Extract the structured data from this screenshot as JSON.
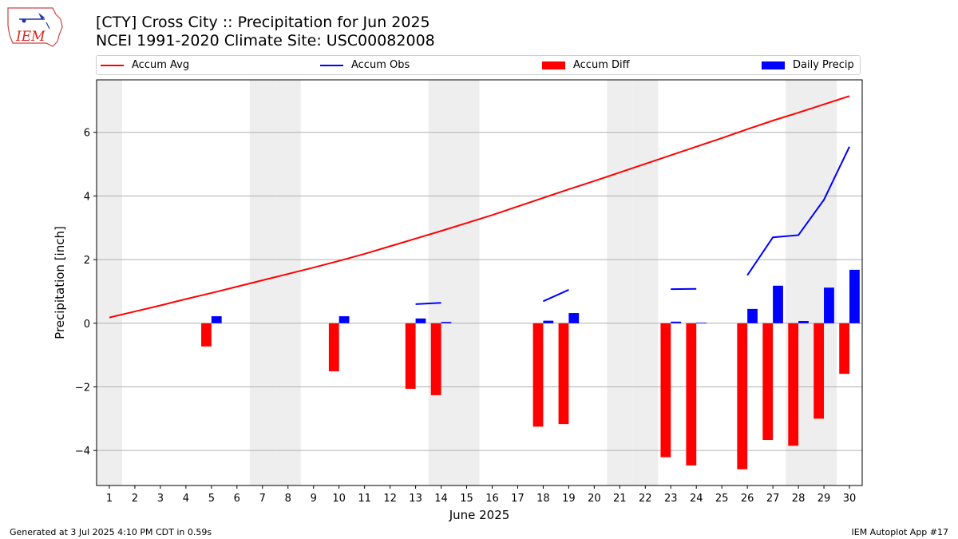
{
  "header": {
    "title_line1": "[CTY] Cross City :: Precipitation for Jun 2025",
    "title_line2": "NCEI 1991-2020 Climate Site: USC00082008",
    "logo_text": "IEM"
  },
  "legend": {
    "accum_avg": "Accum Avg",
    "accum_obs": "Accum Obs",
    "accum_diff": "Accum Diff",
    "daily_precip": "Daily Precip"
  },
  "footer": {
    "generated": "Generated at 3 Jul 2025 4:10 PM CDT in 0.59s",
    "app": "IEM Autoplot App #17"
  },
  "colors": {
    "accum_avg": "#ff0000",
    "accum_obs": "#0000ff",
    "accum_diff": "#ff0000",
    "daily_precip": "#0000ff",
    "weekend_shade": "#eeeeee",
    "grid": "#b0b0b0"
  },
  "chart_data": {
    "type": "bar",
    "xlabel": "June 2025",
    "ylabel": "Precipitation [inch]",
    "ylim": [
      -5.1,
      7.65
    ],
    "xlim": [
      0.5,
      30.5
    ],
    "yticks": [
      -4,
      -2,
      0,
      2,
      4,
      6
    ],
    "ytick_labels": [
      "−4",
      "−2",
      "0",
      "2",
      "4",
      "6"
    ],
    "x": [
      1,
      2,
      3,
      4,
      5,
      6,
      7,
      8,
      9,
      10,
      11,
      12,
      13,
      14,
      15,
      16,
      17,
      18,
      19,
      20,
      21,
      22,
      23,
      24,
      25,
      26,
      27,
      28,
      29,
      30
    ],
    "xtick_labels": [
      "1",
      "2",
      "3",
      "4",
      "5",
      "6",
      "7",
      "8",
      "9",
      "10",
      "11",
      "12",
      "13",
      "14",
      "15",
      "16",
      "17",
      "18",
      "19",
      "20",
      "21",
      "22",
      "23",
      "24",
      "25",
      "26",
      "27",
      "28",
      "29",
      "30"
    ],
    "weekend_days": [
      1,
      7,
      8,
      14,
      15,
      21,
      22,
      28,
      29
    ],
    "grid": "horizontal",
    "legend_position": "top",
    "series": [
      {
        "name": "Accum Avg",
        "type": "line",
        "values": [
          0.18,
          0.37,
          0.56,
          0.76,
          0.95,
          1.15,
          1.35,
          1.55,
          1.75,
          1.96,
          2.18,
          2.42,
          2.66,
          2.9,
          3.15,
          3.4,
          3.67,
          3.94,
          4.21,
          4.47,
          4.74,
          5.01,
          5.28,
          5.55,
          5.82,
          6.1,
          6.37,
          6.62,
          6.88,
          7.14
        ]
      },
      {
        "name": "Accum Obs",
        "type": "line",
        "values": [
          null,
          null,
          null,
          null,
          null,
          null,
          null,
          null,
          null,
          null,
          null,
          null,
          0.6,
          0.64,
          null,
          null,
          null,
          0.69,
          1.05,
          null,
          null,
          null,
          1.07,
          1.08,
          null,
          1.51,
          2.7,
          2.77,
          3.88,
          5.55
        ]
      },
      {
        "name": "Accum Diff",
        "type": "bar",
        "values": [
          null,
          null,
          null,
          null,
          -0.73,
          null,
          null,
          null,
          null,
          -1.51,
          null,
          null,
          -2.06,
          -2.26,
          null,
          null,
          null,
          -3.25,
          -3.17,
          null,
          null,
          null,
          -4.21,
          -4.47,
          null,
          -4.59,
          -3.67,
          -3.85,
          -3.0,
          -1.59
        ]
      },
      {
        "name": "Daily Precip",
        "type": "bar",
        "values": [
          null,
          null,
          null,
          null,
          0.22,
          null,
          null,
          null,
          null,
          0.22,
          null,
          null,
          0.15,
          0.04,
          null,
          null,
          null,
          0.08,
          0.32,
          null,
          null,
          null,
          0.05,
          0.02,
          null,
          0.45,
          1.18,
          0.07,
          1.12,
          1.68
        ]
      }
    ]
  }
}
